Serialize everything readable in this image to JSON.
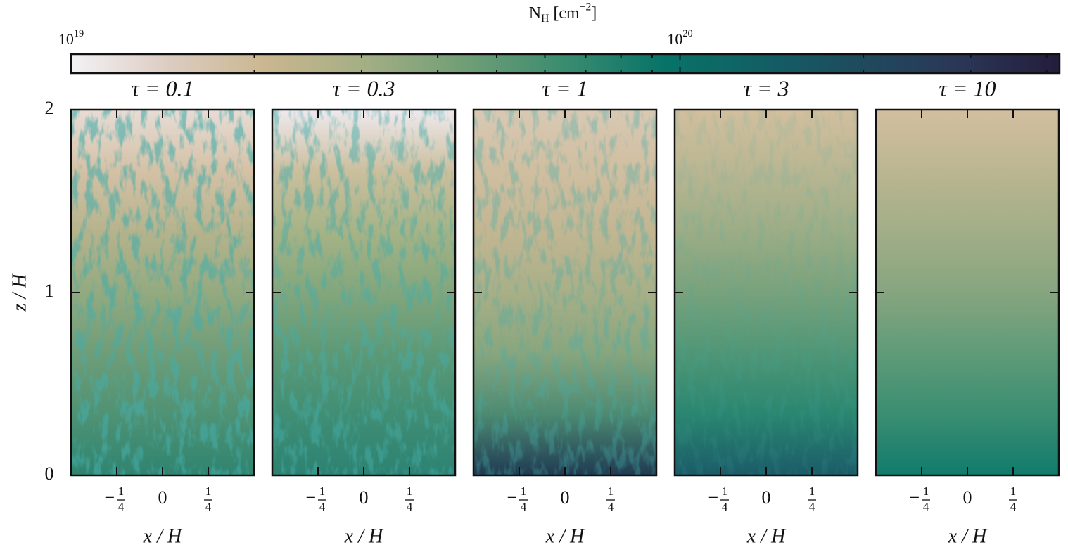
{
  "colorbar": {
    "label": "N_H [cm^−2]",
    "log_scale": true,
    "lim": [
      1e+19,
      4.2e+20
    ],
    "ticks": [
      {
        "value": 1e+19,
        "label": "10^19"
      },
      {
        "value": 1e+20,
        "label": "10^20"
      }
    ],
    "minor_ticks": [
      2e+19,
      3e+19,
      4e+19,
      5e+19,
      6e+19,
      7e+19,
      8e+19,
      9e+19,
      2e+20,
      3e+20,
      4e+20
    ],
    "colors": [
      "#f3f1f6",
      "#dcccc0",
      "#c9b68f",
      "#a3ae84",
      "#6f9e76",
      "#3a8c70",
      "#077368",
      "#125f64",
      "#1f4a5e",
      "#2b3656",
      "#231d3c"
    ]
  },
  "chart_data": [
    {
      "type": "heatmap",
      "title": "τ = 0.1",
      "xlabel": "x / H",
      "ylabel": "z / H",
      "xlim": [
        -0.5,
        0.5
      ],
      "ylim": [
        0,
        2
      ],
      "xticks": [
        {
          "value": -0.25,
          "label": "−1/4"
        },
        0,
        {
          "value": 0.25,
          "label": "1/4"
        }
      ],
      "yticks": [
        0,
        1,
        2
      ],
      "show_ytick_labels": true,
      "colors": [
        "#e7dcd6",
        "#d4c1a6",
        "#b6b38c",
        "#93aa80",
        "#6f9d78",
        "#4f9274",
        "#2f8470"
      ]
    },
    {
      "type": "heatmap",
      "title": "τ = 0.3",
      "xlabel": "x / H",
      "xlim": [
        -0.5,
        0.5
      ],
      "ylim": [
        0,
        2
      ],
      "xticks": [
        {
          "value": -0.25,
          "label": "−1/4"
        },
        0,
        {
          "value": 0.25,
          "label": "1/4"
        }
      ],
      "yticks": [
        0,
        1,
        2
      ],
      "show_ytick_labels": false,
      "colors": [
        "#efe9ee",
        "#cbbf9e",
        "#a6b386",
        "#83a67c",
        "#5c9976",
        "#408e74",
        "#2c8272"
      ]
    },
    {
      "type": "heatmap",
      "title": "τ = 1",
      "xlabel": "x / H",
      "xlim": [
        -0.5,
        0.5
      ],
      "ylim": [
        0,
        2
      ],
      "xticks": [
        {
          "value": -0.25,
          "label": "−1/4"
        },
        0,
        {
          "value": 0.25,
          "label": "1/4"
        }
      ],
      "yticks": [
        0,
        1,
        2
      ],
      "show_ytick_labels": false,
      "colors": [
        "#d9c9b4",
        "#d0bea0",
        "#c2b692",
        "#a8af87",
        "#88a67e",
        "#4c8a72",
        "#1f3a52"
      ]
    },
    {
      "type": "heatmap",
      "title": "τ = 3",
      "xlabel": "x / H",
      "xlim": [
        -0.5,
        0.5
      ],
      "ylim": [
        0,
        2
      ],
      "xticks": [
        {
          "value": -0.25,
          "label": "−1/4"
        },
        0,
        {
          "value": 0.25,
          "label": "1/4"
        }
      ],
      "yticks": [
        0,
        1,
        2
      ],
      "show_ytick_labels": false,
      "colors": [
        "#d2bf9e",
        "#b9b692",
        "#9cad86",
        "#78a27c",
        "#4f9676",
        "#2a8670",
        "#1b5b68"
      ]
    },
    {
      "type": "heatmap",
      "title": "τ = 10",
      "xlabel": "x / H",
      "xlim": [
        -0.5,
        0.5
      ],
      "ylim": [
        0,
        2
      ],
      "xticks": [
        {
          "value": -0.25,
          "label": "−1/4"
        },
        0,
        {
          "value": 0.25,
          "label": "1/4"
        }
      ],
      "yticks": [
        0,
        1,
        2
      ],
      "show_ytick_labels": false,
      "colors": [
        "#d3bf9f",
        "#bbb692",
        "#a2ae87",
        "#86a57f",
        "#5f9b78",
        "#3a8e72",
        "#117b6c"
      ]
    }
  ]
}
